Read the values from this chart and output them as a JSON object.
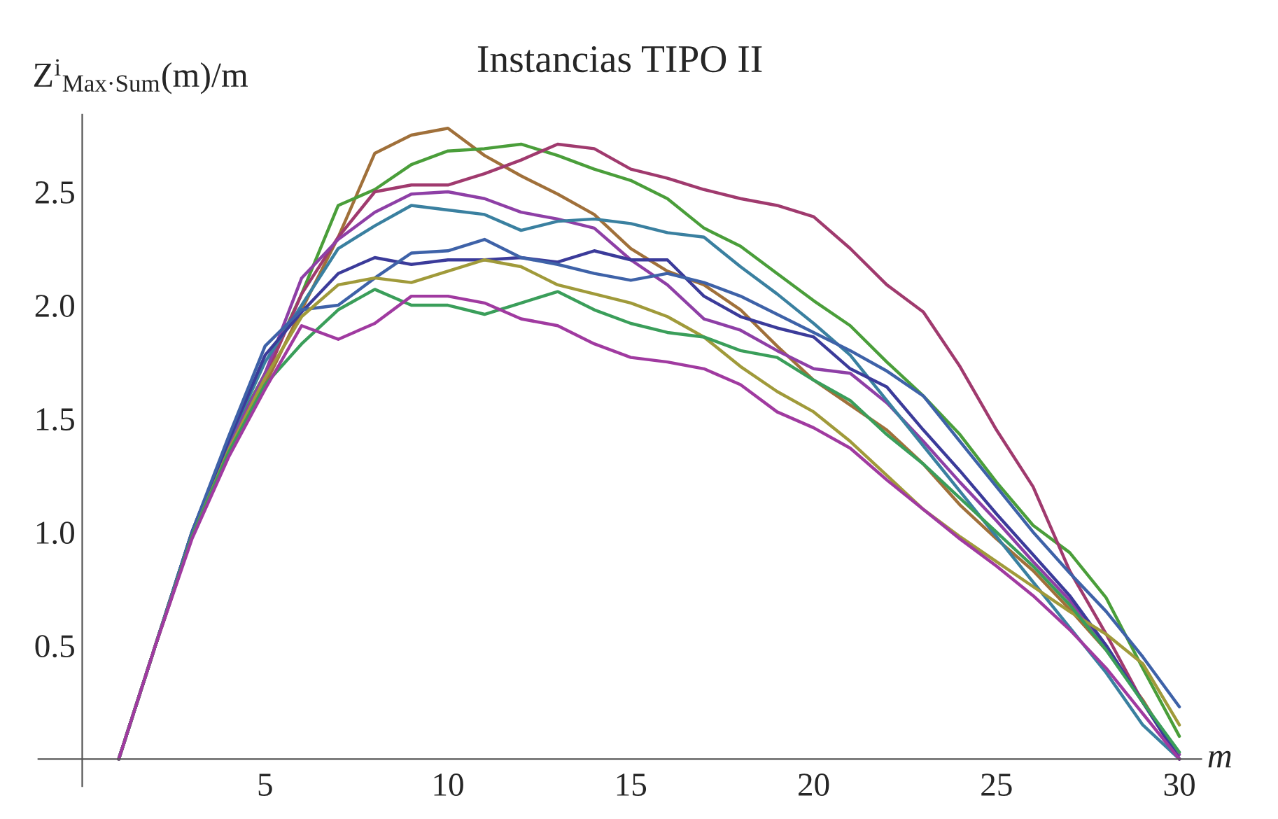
{
  "chart_data": {
    "type": "line",
    "title": "Instancias TIPO II",
    "xlabel": "m",
    "ylabel": "Z$^{i}$$_{Max·Sum}$(m)/m",
    "x": [
      1,
      2,
      3,
      4,
      5,
      6,
      7,
      8,
      9,
      10,
      11,
      12,
      13,
      14,
      15,
      16,
      17,
      18,
      19,
      20,
      21,
      22,
      23,
      24,
      25,
      26,
      27,
      28,
      29,
      30
    ],
    "xlim": [
      -1.2,
      30.6
    ],
    "ylim": [
      -0.12,
      2.84
    ],
    "xticks": [
      5,
      10,
      15,
      20,
      25,
      30
    ],
    "yticks": [
      {
        "value": 0.5,
        "label": "0.5"
      },
      {
        "value": 1.0,
        "label": "1.0"
      },
      {
        "value": 1.5,
        "label": "1.5"
      },
      {
        "value": 2.0,
        "label": "2.0"
      },
      {
        "value": 2.5,
        "label": "2.5"
      }
    ],
    "grid": false,
    "legend": false,
    "marker": "none",
    "line_style": "solid",
    "series": [
      {
        "color": "#a0703a",
        "values": [
          0,
          0.5,
          0.98,
          1.35,
          1.65,
          1.98,
          2.3,
          2.67,
          2.75,
          2.78,
          2.66,
          2.57,
          2.49,
          2.4,
          2.25,
          2.15,
          2.09,
          1.98,
          1.82,
          1.67,
          1.56,
          1.45,
          1.3,
          1.12,
          0.97,
          0.83,
          0.66,
          0.48,
          0.26,
          0.0
        ]
      },
      {
        "color": "#4a9e3a",
        "values": [
          0,
          0.5,
          1.0,
          1.4,
          1.7,
          2.05,
          2.44,
          2.51,
          2.62,
          2.68,
          2.69,
          2.71,
          2.66,
          2.6,
          2.55,
          2.47,
          2.34,
          2.26,
          2.14,
          2.02,
          1.91,
          1.75,
          1.6,
          1.43,
          1.22,
          1.03,
          0.91,
          0.71,
          0.4,
          0.1
        ]
      },
      {
        "color": "#a03a6e",
        "values": [
          0,
          0.5,
          0.98,
          1.36,
          1.68,
          2.05,
          2.3,
          2.5,
          2.53,
          2.53,
          2.58,
          2.64,
          2.71,
          2.69,
          2.6,
          2.56,
          2.51,
          2.47,
          2.44,
          2.39,
          2.25,
          2.09,
          1.97,
          1.73,
          1.45,
          1.2,
          0.83,
          0.55,
          0.25,
          0.0
        ]
      },
      {
        "color": "#8e3fa6",
        "values": [
          0,
          0.5,
          0.98,
          1.38,
          1.7,
          2.12,
          2.29,
          2.41,
          2.49,
          2.5,
          2.47,
          2.41,
          2.38,
          2.34,
          2.2,
          2.09,
          1.94,
          1.89,
          1.8,
          1.72,
          1.7,
          1.57,
          1.4,
          1.22,
          1.05,
          0.87,
          0.7,
          0.5,
          0.25,
          0.02
        ]
      },
      {
        "color": "#3a80a0",
        "values": [
          0,
          0.5,
          1.0,
          1.4,
          1.75,
          2.0,
          2.25,
          2.35,
          2.44,
          2.42,
          2.4,
          2.33,
          2.37,
          2.38,
          2.36,
          2.32,
          2.3,
          2.17,
          2.05,
          1.92,
          1.78,
          1.58,
          1.38,
          1.18,
          0.98,
          0.78,
          0.58,
          0.38,
          0.15,
          0.0
        ]
      },
      {
        "color": "#3b3b9a",
        "values": [
          0,
          0.5,
          1.0,
          1.4,
          1.78,
          1.97,
          2.14,
          2.21,
          2.18,
          2.2,
          2.2,
          2.21,
          2.19,
          2.24,
          2.2,
          2.2,
          2.04,
          1.95,
          1.9,
          1.86,
          1.72,
          1.64,
          1.45,
          1.27,
          1.08,
          0.9,
          0.72,
          0.5,
          0.25,
          0.0
        ]
      },
      {
        "color": "#3e62a8",
        "values": [
          0,
          0.5,
          1.0,
          1.42,
          1.82,
          1.98,
          2.0,
          2.12,
          2.23,
          2.24,
          2.29,
          2.21,
          2.18,
          2.14,
          2.11,
          2.14,
          2.1,
          2.04,
          1.96,
          1.88,
          1.8,
          1.71,
          1.6,
          1.4,
          1.2,
          1.0,
          0.82,
          0.65,
          0.45,
          0.23
        ]
      },
      {
        "color": "#a09a3a",
        "values": [
          0,
          0.5,
          0.98,
          1.36,
          1.68,
          1.95,
          2.09,
          2.12,
          2.1,
          2.15,
          2.2,
          2.17,
          2.09,
          2.05,
          2.01,
          1.95,
          1.86,
          1.73,
          1.62,
          1.53,
          1.4,
          1.25,
          1.1,
          0.98,
          0.87,
          0.76,
          0.65,
          0.55,
          0.42,
          0.15
        ]
      },
      {
        "color": "#3a9e5a",
        "values": [
          0,
          0.5,
          0.98,
          1.35,
          1.65,
          1.83,
          1.98,
          2.07,
          2.0,
          2.0,
          1.96,
          2.01,
          2.06,
          1.98,
          1.92,
          1.88,
          1.86,
          1.8,
          1.77,
          1.67,
          1.58,
          1.43,
          1.3,
          1.15,
          1.0,
          0.85,
          0.68,
          0.48,
          0.25,
          0.03
        ]
      },
      {
        "color": "#a03aa0",
        "values": [
          0,
          0.5,
          0.97,
          1.33,
          1.63,
          1.91,
          1.85,
          1.92,
          2.04,
          2.04,
          2.01,
          1.94,
          1.91,
          1.83,
          1.77,
          1.75,
          1.72,
          1.65,
          1.53,
          1.46,
          1.37,
          1.23,
          1.1,
          0.97,
          0.85,
          0.72,
          0.57,
          0.4,
          0.2,
          0.0
        ]
      }
    ]
  }
}
